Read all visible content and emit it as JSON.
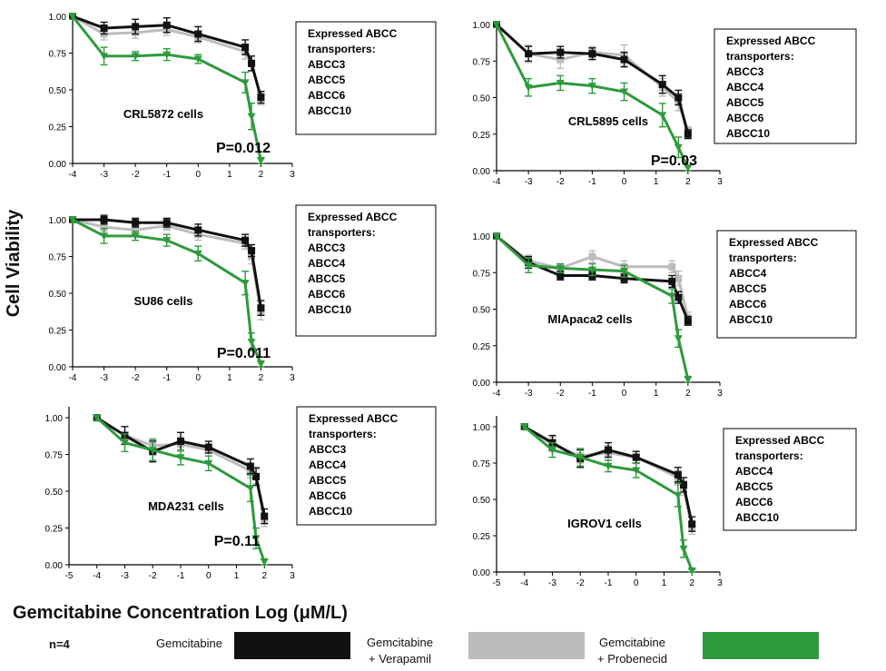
{
  "figure": {
    "ylabel": "Cell Viability",
    "xlabel": "Gemcitabine Concentration Log (μM/L)",
    "n_label": "n=4",
    "legend": [
      {
        "line1": "Gemcitabine",
        "line2": "",
        "color": "#111111"
      },
      {
        "line1": "Gemcitabine",
        "line2": "+ Verapamil",
        "color": "#bcbcbc"
      },
      {
        "line1": "Gemcitabine",
        "line2": "+ Probenecid",
        "color": "#2e9a3c"
      }
    ]
  },
  "chart_data": [
    {
      "type": "line",
      "panel": "CRL5872 cells",
      "title": "CRL5872 cells",
      "pvalue": "P=0.012",
      "xlim": [
        -4,
        3
      ],
      "ylim": [
        0,
        1
      ],
      "xticks": [
        "-4",
        "-3",
        "-2",
        "-1",
        "0",
        "1",
        "2",
        "3"
      ],
      "yticks": [
        "0.00",
        "0.25",
        "0.50",
        "0.75",
        "1.00"
      ],
      "transporters_title": [
        "Expressed ABCC",
        "transporters:"
      ],
      "transporters": [
        "ABCC3",
        "ABCC5",
        "ABCC6",
        "ABCC10"
      ],
      "series": [
        {
          "color": "#111111",
          "marker": "square",
          "x": [
            -4,
            -3,
            -2,
            -1,
            0,
            1.5,
            1.7,
            2
          ],
          "y": [
            1.0,
            0.92,
            0.93,
            0.94,
            0.88,
            0.79,
            0.68,
            0.45
          ],
          "err": [
            0.02,
            0.04,
            0.05,
            0.05,
            0.05,
            0.05,
            0.05,
            0.04
          ]
        },
        {
          "color": "#bcbcbc",
          "marker": "square",
          "x": [
            -4,
            -3,
            -2,
            -1,
            0,
            1.5,
            1.7,
            2
          ],
          "y": [
            1.0,
            0.88,
            0.89,
            0.91,
            0.86,
            0.76,
            0.68,
            0.44
          ],
          "err": [
            0.02,
            0.04,
            0.04,
            0.04,
            0.04,
            0.05,
            0.05,
            0.04
          ]
        },
        {
          "color": "#2e9a3c",
          "marker": "triangle",
          "x": [
            -4,
            -3,
            -2,
            -1,
            0,
            1.5,
            1.7,
            2
          ],
          "y": [
            1.0,
            0.73,
            0.73,
            0.74,
            0.71,
            0.55,
            0.32,
            0.02
          ],
          "err": [
            0.02,
            0.06,
            0.03,
            0.04,
            0.03,
            0.07,
            0.09,
            0.02
          ]
        }
      ]
    },
    {
      "type": "line",
      "panel": "CRL5895 cells",
      "title": "CRL5895 cells",
      "pvalue": "P=0.03",
      "xlim": [
        -4,
        3
      ],
      "ylim": [
        0,
        1
      ],
      "xticks": [
        "-4",
        "-3",
        "-2",
        "-1",
        "0",
        "1",
        "2",
        "3"
      ],
      "yticks": [
        "0.00",
        "0.25",
        "0.50",
        "0.75",
        "1.00"
      ],
      "transporters_title": [
        "Expressed ABCC",
        "transporters:"
      ],
      "transporters": [
        "ABCC3",
        "ABCC4",
        "ABCC5",
        "ABCC6",
        "ABCC10"
      ],
      "series": [
        {
          "color": "#111111",
          "marker": "square",
          "x": [
            -4,
            -3,
            -2,
            -1,
            0,
            1.2,
            1.7,
            2
          ],
          "y": [
            1.0,
            0.8,
            0.81,
            0.8,
            0.76,
            0.59,
            0.5,
            0.25
          ],
          "err": [
            0.02,
            0.05,
            0.04,
            0.04,
            0.05,
            0.06,
            0.05,
            0.03
          ]
        },
        {
          "color": "#bcbcbc",
          "marker": "square",
          "x": [
            -4,
            -3,
            -2,
            -1,
            0,
            1.2,
            1.7,
            2
          ],
          "y": [
            1.0,
            0.8,
            0.76,
            0.81,
            0.79,
            0.57,
            0.47,
            0.27
          ],
          "err": [
            0.02,
            0.06,
            0.06,
            0.04,
            0.07,
            0.06,
            0.06,
            0.03
          ]
        },
        {
          "color": "#2e9a3c",
          "marker": "triangle",
          "x": [
            -4,
            -3,
            -2,
            -1,
            0,
            1.2,
            1.7,
            2
          ],
          "y": [
            1.0,
            0.57,
            0.6,
            0.58,
            0.54,
            0.38,
            0.16,
            0.02
          ],
          "err": [
            0.02,
            0.06,
            0.05,
            0.05,
            0.06,
            0.08,
            0.07,
            0.02
          ]
        }
      ]
    },
    {
      "type": "line",
      "panel": "SU86 cells",
      "title": "SU86 cells",
      "pvalue": "P=0.011",
      "xlim": [
        -4,
        3
      ],
      "ylim": [
        0,
        1
      ],
      "xticks": [
        "-4",
        "-3",
        "-2",
        "-1",
        "0",
        "1",
        "2",
        "3"
      ],
      "yticks": [
        "0.00",
        "0.25",
        "0.50",
        "0.75",
        "1.00"
      ],
      "transporters_title": [
        "Expressed ABCC",
        "transporters:"
      ],
      "transporters": [
        "ABCC3",
        "ABCC4",
        "ABCC5",
        "ABCC6",
        "ABCC10"
      ],
      "series": [
        {
          "color": "#111111",
          "marker": "square",
          "x": [
            -4,
            -3,
            -2,
            -1,
            0,
            1.5,
            1.7,
            2
          ],
          "y": [
            1.0,
            1.0,
            0.98,
            0.98,
            0.93,
            0.86,
            0.79,
            0.4
          ],
          "err": [
            0.02,
            0.03,
            0.03,
            0.03,
            0.04,
            0.04,
            0.04,
            0.05
          ]
        },
        {
          "color": "#bcbcbc",
          "marker": "square",
          "x": [
            -4,
            -3,
            -2,
            -1,
            0,
            1.5,
            1.7,
            2
          ],
          "y": [
            1.0,
            0.95,
            0.93,
            0.96,
            0.9,
            0.84,
            0.75,
            0.37
          ],
          "err": [
            0.02,
            0.03,
            0.03,
            0.03,
            0.04,
            0.04,
            0.05,
            0.05
          ]
        },
        {
          "color": "#2e9a3c",
          "marker": "triangle",
          "x": [
            -4,
            -3,
            -2,
            -1,
            0,
            1.5,
            1.7,
            2
          ],
          "y": [
            1.0,
            0.89,
            0.89,
            0.86,
            0.77,
            0.57,
            0.17,
            0.02
          ],
          "err": [
            0.02,
            0.05,
            0.03,
            0.04,
            0.05,
            0.08,
            0.06,
            0.02
          ]
        }
      ]
    },
    {
      "type": "line",
      "panel": "MIApaca2 cells",
      "title": "MIApaca2 cells",
      "pvalue": "",
      "xlim": [
        -4,
        3
      ],
      "ylim": [
        0,
        1
      ],
      "xticks": [
        "-4",
        "-3",
        "-2",
        "-1",
        "0",
        "1",
        "2",
        "3"
      ],
      "yticks": [
        "0.00",
        "0.25",
        "0.50",
        "0.75",
        "1.00"
      ],
      "transporters_title": [
        "Expressed ABCC",
        "transporters:"
      ],
      "transporters": [
        "ABCC4",
        "ABCC5",
        "ABCC6",
        "ABCC10"
      ],
      "series": [
        {
          "color": "#111111",
          "marker": "square",
          "x": [
            -4,
            -3,
            -2,
            -1,
            0,
            1.5,
            1.7,
            2
          ],
          "y": [
            1.0,
            0.82,
            0.73,
            0.73,
            0.71,
            0.69,
            0.58,
            0.42
          ],
          "err": [
            0.02,
            0.04,
            0.03,
            0.03,
            0.03,
            0.04,
            0.04,
            0.03
          ]
        },
        {
          "color": "#bcbcbc",
          "marker": "square",
          "x": [
            -4,
            -3,
            -2,
            -1,
            0,
            1.5,
            1.7,
            2
          ],
          "y": [
            1.0,
            0.83,
            0.78,
            0.86,
            0.79,
            0.79,
            0.71,
            0.44
          ],
          "err": [
            0.02,
            0.04,
            0.03,
            0.04,
            0.04,
            0.04,
            0.05,
            0.04
          ]
        },
        {
          "color": "#2e9a3c",
          "marker": "triangle",
          "x": [
            -4,
            -3,
            -2,
            -1,
            0,
            1.5,
            1.7,
            2
          ],
          "y": [
            1.0,
            0.8,
            0.78,
            0.77,
            0.76,
            0.59,
            0.3,
            0.02
          ],
          "err": [
            0.02,
            0.05,
            0.03,
            0.04,
            0.04,
            0.05,
            0.06,
            0.02
          ]
        }
      ]
    },
    {
      "type": "line",
      "panel": "MDA231 cells",
      "title": "MDA231 cells",
      "pvalue": "P=0.11",
      "xlim": [
        -5,
        3
      ],
      "ylim": [
        0,
        1.05
      ],
      "xticks": [
        "-5",
        "-4",
        "-3",
        "-2",
        "-1",
        "0",
        "1",
        "2",
        "3"
      ],
      "yticks": [
        "0.00",
        "0.25",
        "0.50",
        "0.75",
        "1.00"
      ],
      "transporters_title": [
        "Expressed ABCC",
        "transporters:"
      ],
      "transporters": [
        "ABCC3",
        "ABCC4",
        "ABCC5",
        "ABCC6",
        "ABCC10"
      ],
      "series": [
        {
          "color": "#111111",
          "marker": "square",
          "x": [
            -4,
            -3,
            -2,
            -1,
            0,
            1.5,
            1.7,
            2
          ],
          "y": [
            1.0,
            0.88,
            0.77,
            0.84,
            0.8,
            0.67,
            0.6,
            0.33
          ],
          "err": [
            0.02,
            0.06,
            0.07,
            0.06,
            0.04,
            0.05,
            0.06,
            0.05
          ]
        },
        {
          "color": "#bcbcbc",
          "marker": "square",
          "x": [
            -4,
            -3,
            -2,
            -1,
            0,
            1.5,
            1.7,
            2
          ],
          "y": [
            1.0,
            0.88,
            0.81,
            0.82,
            0.78,
            0.64,
            0.6,
            0.3
          ],
          "err": [
            0.02,
            0.06,
            0.05,
            0.05,
            0.04,
            0.05,
            0.05,
            0.04
          ]
        },
        {
          "color": "#2e9a3c",
          "marker": "triangle",
          "x": [
            -4,
            -3,
            -2,
            -1,
            0,
            1.5,
            1.7,
            2
          ],
          "y": [
            1.0,
            0.83,
            0.78,
            0.73,
            0.69,
            0.52,
            0.18,
            0.02
          ],
          "err": [
            0.02,
            0.06,
            0.07,
            0.05,
            0.05,
            0.09,
            0.07,
            0.02
          ]
        }
      ]
    },
    {
      "type": "line",
      "panel": "IGROV1 cells",
      "title": "IGROV1 cells",
      "pvalue": "",
      "xlim": [
        -5,
        3
      ],
      "ylim": [
        0,
        1.05
      ],
      "xticks": [
        "-5",
        "-4",
        "-3",
        "-2",
        "-1",
        "0",
        "1",
        "2",
        "3"
      ],
      "yticks": [
        "0.00",
        "0.25",
        "0.50",
        "0.75",
        "1.00"
      ],
      "transporters_title": [
        "Expressed ABCC",
        "transporters:"
      ],
      "transporters": [
        "ABCC4",
        "ABCC5",
        "ABCC6",
        "ABCC10"
      ],
      "series": [
        {
          "color": "#111111",
          "marker": "square",
          "x": [
            -4,
            -3,
            -2,
            -1,
            0,
            1.5,
            1.7,
            2
          ],
          "y": [
            1.0,
            0.89,
            0.78,
            0.84,
            0.79,
            0.67,
            0.6,
            0.33
          ],
          "err": [
            0.02,
            0.05,
            0.06,
            0.05,
            0.04,
            0.05,
            0.05,
            0.05
          ]
        },
        {
          "color": "#bcbcbc",
          "marker": "square",
          "x": [
            -4,
            -3,
            -2,
            -1,
            0,
            1.5,
            1.7,
            2
          ],
          "y": [
            1.0,
            0.88,
            0.8,
            0.82,
            0.79,
            0.65,
            0.58,
            0.3
          ],
          "err": [
            0.02,
            0.05,
            0.05,
            0.05,
            0.04,
            0.05,
            0.05,
            0.04
          ]
        },
        {
          "color": "#2e9a3c",
          "marker": "triangle",
          "x": [
            -4,
            -3,
            -2,
            -1,
            0,
            1.5,
            1.7,
            2
          ],
          "y": [
            1.0,
            0.84,
            0.79,
            0.73,
            0.7,
            0.53,
            0.16,
            0.01
          ],
          "err": [
            0.02,
            0.05,
            0.06,
            0.04,
            0.05,
            0.08,
            0.06,
            0.01
          ]
        }
      ]
    }
  ]
}
